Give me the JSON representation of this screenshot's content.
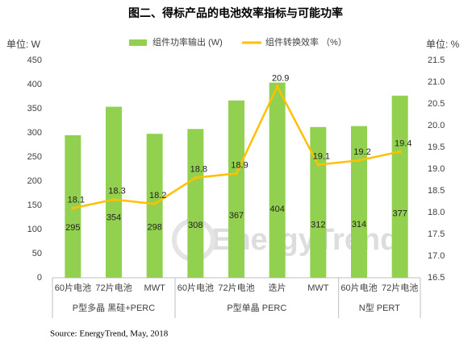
{
  "chart_data": {
    "type": "bar_line",
    "title": "图二、得标产品的电池效率指标与可能功率",
    "y_label": "单位: W",
    "y2_label": "单位: %",
    "categories": [
      "60片电池",
      "72片电池",
      "MWT",
      "60片电池",
      "72片电池",
      "迭片",
      "MWT",
      "60片电池",
      "72片电池"
    ],
    "groups": [
      "P型多晶 黑硅+PERC",
      "P型单晶 PERC",
      "N型 PERT"
    ],
    "series": [
      {
        "name": "组件功率输出 (W)",
        "type": "bar",
        "color": "#92d050",
        "values": [
          295,
          354,
          298,
          308,
          367,
          404,
          312,
          314,
          377
        ]
      },
      {
        "name": "组件转换效率 （%）",
        "type": "line",
        "axis": "y2",
        "color": "#ffc000",
        "values": [
          18.1,
          18.3,
          18.2,
          18.8,
          18.9,
          20.9,
          19.1,
          19.2,
          19.4
        ]
      }
    ],
    "ylim": [
      0,
      450
    ],
    "yticks": [
      0,
      50,
      100,
      150,
      200,
      250,
      300,
      350,
      400,
      450
    ],
    "y2lim": [
      16.5,
      21.5
    ],
    "y2ticks": [
      16.5,
      {
        "value": 17,
        "label": "17.0"
      },
      17.5,
      {
        "value": 18,
        "label": "18.0"
      },
      18.5,
      {
        "value": 19,
        "label": "19.0"
      },
      19.5,
      {
        "value": 20,
        "label": "20.0"
      },
      20.5,
      {
        "value": 21,
        "label": "21.0"
      },
      21.5
    ],
    "source": "Source: EnergyTrend, May, 2018",
    "watermark": "EnergyTrend",
    "legend": "top"
  }
}
